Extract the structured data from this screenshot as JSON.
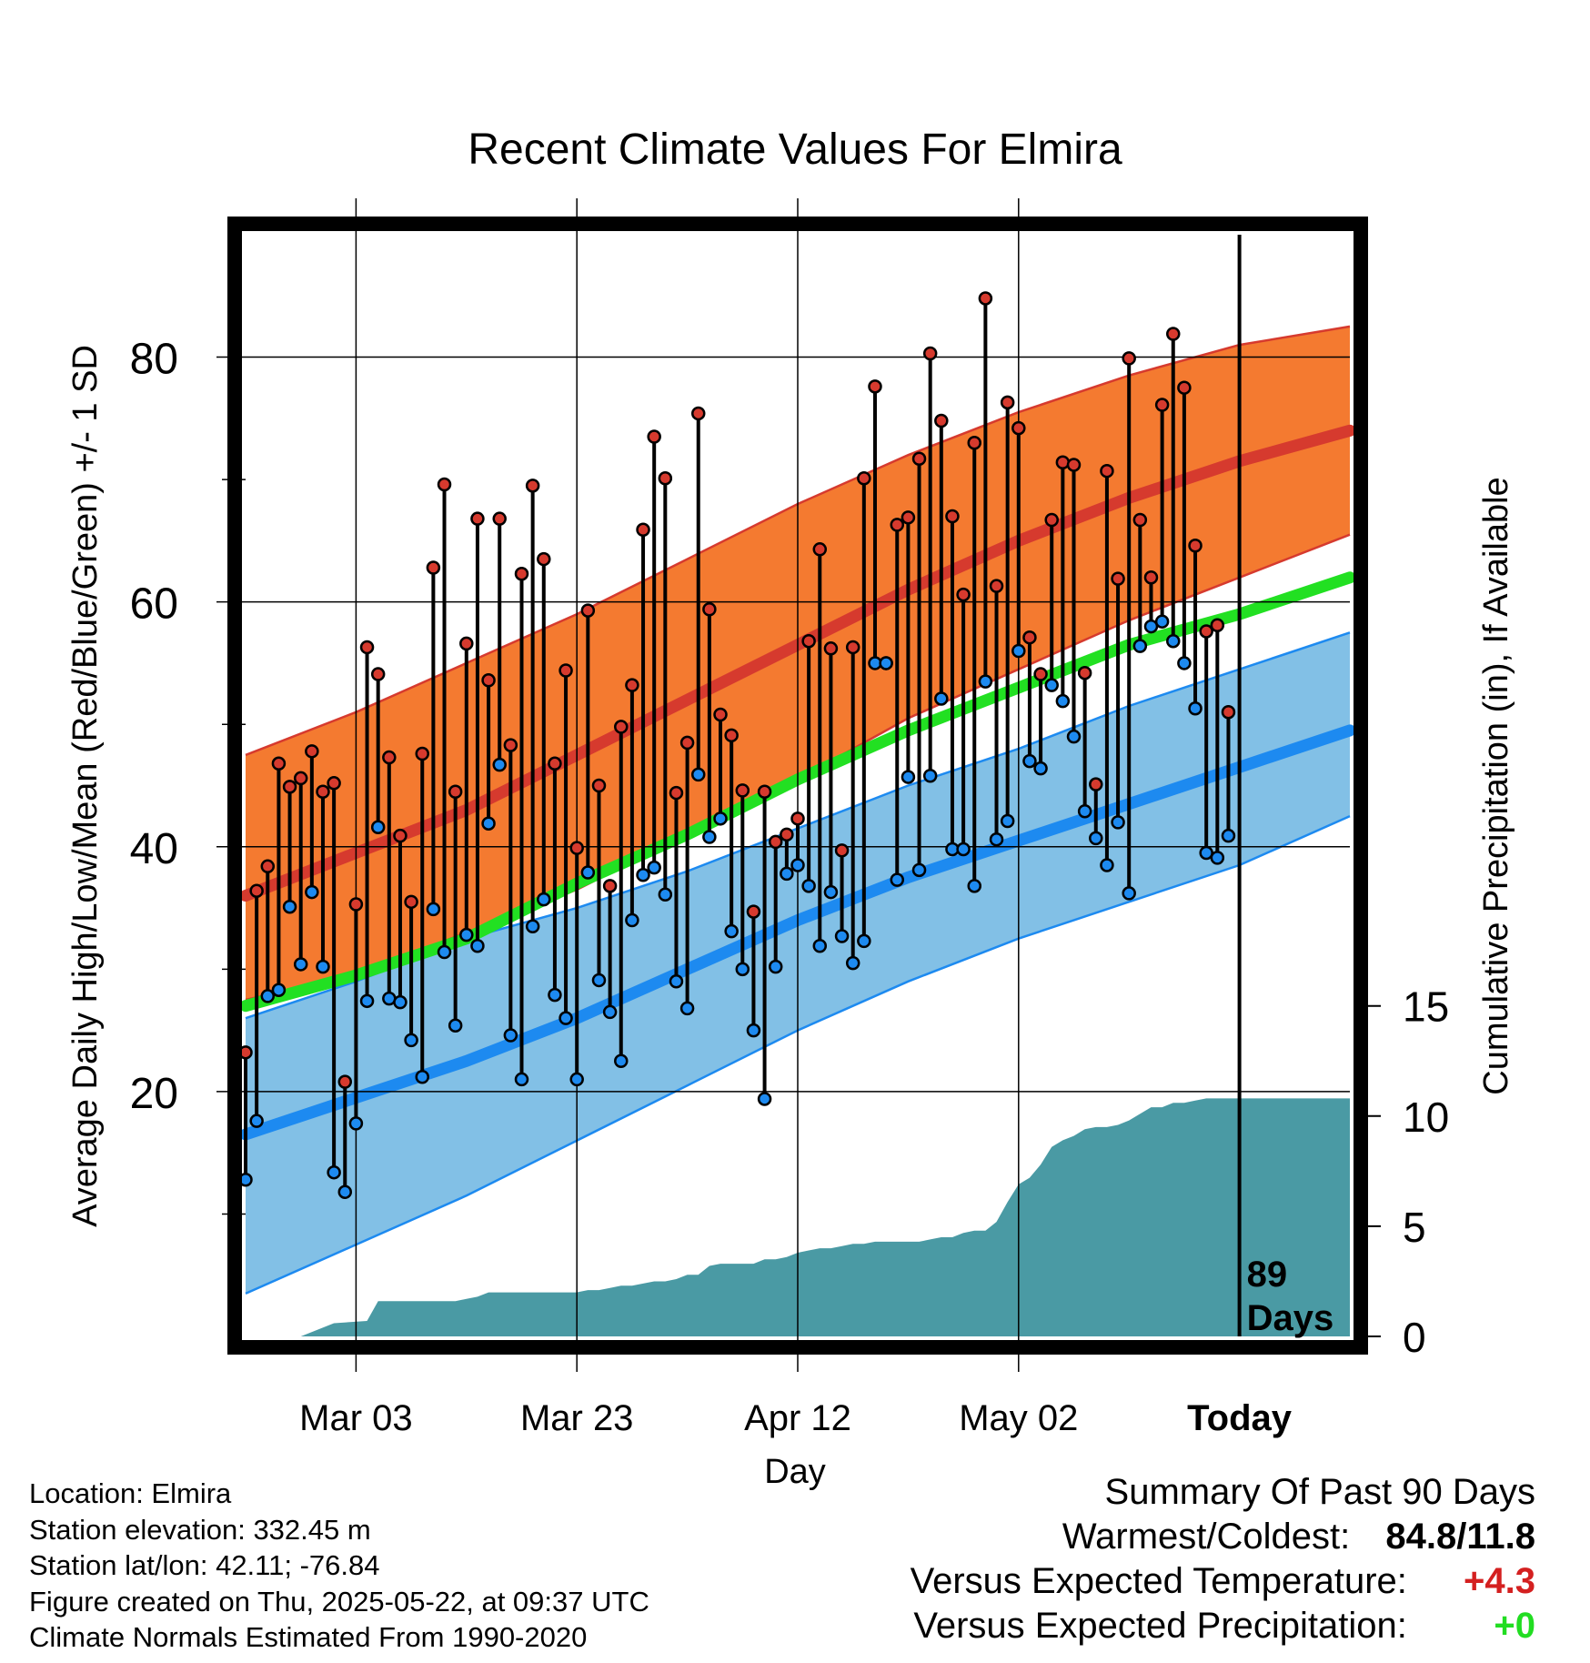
{
  "chart_data": {
    "type": "line",
    "title": "Recent Climate Values For Elmira",
    "xlabel": "Day",
    "ylabel_left": "Average Daily High/Low/Mean (Red/Blue/Green) +/- 1 SD",
    "ylabel_right": "Cumulative Precipitation (in), If Available",
    "x_tick_labels": [
      "Mar 03",
      "Mar 23",
      "Apr 12",
      "May 02",
      "Today"
    ],
    "x_tick_days": [
      10,
      30,
      50,
      70,
      90
    ],
    "xlim": [
      0,
      100
    ],
    "ylim_left": [
      0,
      90
    ],
    "ylim_right": [
      0,
      50
    ],
    "y_ticks_left": [
      20,
      40,
      60,
      80
    ],
    "y_ticks_right": [
      0,
      5,
      10,
      15
    ],
    "grid": true,
    "today_day": 90,
    "today_label": "89\nDays",
    "colors": {
      "high_band": "#f47a30",
      "high_mean": "#d63a2e",
      "low_band": "#82c0e6",
      "low_mean": "#1d8af0",
      "mean_line": "#22e022",
      "precip": "#4a9aa4",
      "high_marker": "#d63a2e",
      "low_marker": "#1d8af0"
    },
    "normal_days": [
      0,
      10,
      20,
      30,
      40,
      50,
      60,
      70,
      80,
      90,
      100
    ],
    "normal_high_mean": [
      36,
      39.5,
      43,
      47.5,
      52,
      56.5,
      61,
      65,
      68.5,
      71.5,
      74
    ],
    "normal_high_sd_upper": [
      47.5,
      51,
      55,
      59,
      63.5,
      68,
      72,
      75.5,
      78.5,
      81,
      82.5
    ],
    "normal_high_sd_lower": [
      27.5,
      29.5,
      33,
      36.5,
      41,
      45.5,
      50.5,
      54.5,
      58.5,
      62,
      65.5
    ],
    "normal_low_mean": [
      16.5,
      19.5,
      22.5,
      26,
      30,
      34,
      37.5,
      40.5,
      43.5,
      46.5,
      49.5
    ],
    "normal_low_sd_upper": [
      26,
      29,
      32.5,
      35,
      38,
      41.5,
      45,
      48,
      51.5,
      54.5,
      57.5
    ],
    "normal_low_sd_lower": [
      3.5,
      7.5,
      11.5,
      16,
      20.5,
      25,
      29,
      32.5,
      35.5,
      38.5,
      42.5
    ],
    "normal_mean": [
      27,
      29.5,
      32.5,
      37,
      41,
      45.5,
      49.5,
      53,
      56.5,
      59,
      62
    ],
    "series": [
      {
        "name": "High",
        "x": [
          0,
          1,
          2,
          3,
          4,
          5,
          6,
          7,
          8,
          9,
          10,
          11,
          12,
          13,
          14,
          15,
          16,
          17,
          18,
          19,
          20,
          21,
          22,
          23,
          24,
          25,
          26,
          27,
          28,
          29,
          30,
          31,
          32,
          33,
          34,
          35,
          36,
          37,
          38,
          39,
          40,
          41,
          42,
          43,
          44,
          45,
          46,
          47,
          48,
          49,
          50,
          51,
          52,
          53,
          54,
          55,
          56,
          57,
          58,
          59,
          60,
          61,
          62,
          63,
          64,
          65,
          66,
          67,
          68,
          69,
          70,
          71,
          72,
          73,
          74,
          75,
          76,
          77,
          78,
          79,
          80,
          81,
          82,
          83,
          84,
          85,
          86,
          87,
          88,
          89
        ],
        "values": [
          23.2,
          36.4,
          38.4,
          46.8,
          44.9,
          45.6,
          47.8,
          44.5,
          45.2,
          20.8,
          35.3,
          56.3,
          54.1,
          47.3,
          40.9,
          35.5,
          47.6,
          62.8,
          69.6,
          44.5,
          56.6,
          66.8,
          53.6,
          66.8,
          48.3,
          62.3,
          69.5,
          63.5,
          46.8,
          54.4,
          39.9,
          59.3,
          45.0,
          36.8,
          49.8,
          53.2,
          65.9,
          73.5,
          70.1,
          44.4,
          48.5,
          75.4,
          59.4,
          50.8,
          49.1,
          44.6,
          34.7,
          44.5,
          40.4,
          41.0,
          42.3,
          56.8,
          64.3,
          56.2,
          39.7,
          56.3,
          70.1,
          77.6,
          55.0,
          66.3,
          66.9,
          71.7,
          80.3,
          74.8,
          67.0,
          60.6,
          73.0,
          84.8,
          61.3,
          76.3,
          74.2,
          57.1,
          54.1,
          66.7,
          71.4,
          71.2,
          54.2,
          45.1,
          70.7,
          61.9,
          79.9,
          66.7,
          62.0,
          76.1,
          81.9,
          77.5,
          64.6,
          57.6,
          58.1,
          51.0
        ]
      },
      {
        "name": "Low",
        "x": [
          0,
          1,
          2,
          3,
          4,
          5,
          6,
          7,
          8,
          9,
          10,
          11,
          12,
          13,
          14,
          15,
          16,
          17,
          18,
          19,
          20,
          21,
          22,
          23,
          24,
          25,
          26,
          27,
          28,
          29,
          30,
          31,
          32,
          33,
          34,
          35,
          36,
          37,
          38,
          39,
          40,
          41,
          42,
          43,
          44,
          45,
          46,
          47,
          48,
          49,
          50,
          51,
          52,
          53,
          54,
          55,
          56,
          57,
          58,
          59,
          60,
          61,
          62,
          63,
          64,
          65,
          66,
          67,
          68,
          69,
          70,
          71,
          72,
          73,
          74,
          75,
          76,
          77,
          78,
          79,
          80,
          81,
          82,
          83,
          84,
          85,
          86,
          87,
          88,
          89
        ],
        "values": [
          12.8,
          17.6,
          27.8,
          28.3,
          35.1,
          30.4,
          36.3,
          30.2,
          13.4,
          11.8,
          17.4,
          27.4,
          41.6,
          27.6,
          27.3,
          24.2,
          21.2,
          34.9,
          31.4,
          25.4,
          32.8,
          31.9,
          41.9,
          46.7,
          24.6,
          21.0,
          33.5,
          35.7,
          27.9,
          26.0,
          21.0,
          37.9,
          29.1,
          26.5,
          22.5,
          34.0,
          37.7,
          38.3,
          36.1,
          29.0,
          26.8,
          45.9,
          40.8,
          42.3,
          33.1,
          30.0,
          25.0,
          19.4,
          30.2,
          37.8,
          38.5,
          36.8,
          31.9,
          36.3,
          32.7,
          30.5,
          32.3,
          55.0,
          55.0,
          37.3,
          45.7,
          38.1,
          45.8,
          52.1,
          39.8,
          39.8,
          36.8,
          53.5,
          40.6,
          42.1,
          56.0,
          47.0,
          46.4,
          53.2,
          51.9,
          49.0,
          42.9,
          40.7,
          38.5,
          42.0,
          36.2,
          56.4,
          58.0,
          58.4,
          56.8,
          55.0,
          51.3,
          39.5,
          39.1,
          40.9
        ]
      },
      {
        "name": "Cumulative Precipitation",
        "axis": "right",
        "x": [
          0,
          3,
          5,
          8,
          11,
          12,
          19,
          20,
          21,
          22,
          23,
          30,
          31,
          32,
          33,
          34,
          35,
          36,
          37,
          38,
          39,
          40,
          41,
          42,
          43,
          44,
          45,
          46,
          47,
          48,
          49,
          50,
          51,
          52,
          53,
          54,
          55,
          56,
          57,
          58,
          59,
          60,
          61,
          62,
          63,
          64,
          65,
          66,
          67,
          68,
          69,
          70,
          71,
          72,
          73,
          74,
          75,
          76,
          77,
          78,
          79,
          80,
          81,
          82,
          83,
          84,
          85,
          86,
          87,
          88,
          89,
          100
        ],
        "values": [
          0,
          0,
          0,
          0.6,
          0.7,
          1.6,
          1.6,
          1.7,
          1.8,
          2.0,
          2.0,
          2.0,
          2.1,
          2.1,
          2.2,
          2.3,
          2.3,
          2.4,
          2.5,
          2.5,
          2.6,
          2.8,
          2.8,
          3.2,
          3.3,
          3.3,
          3.3,
          3.3,
          3.5,
          3.5,
          3.6,
          3.8,
          3.9,
          4.0,
          4.0,
          4.1,
          4.2,
          4.2,
          4.3,
          4.3,
          4.3,
          4.3,
          4.3,
          4.4,
          4.5,
          4.5,
          4.7,
          4.8,
          4.8,
          5.2,
          6.1,
          6.9,
          7.2,
          7.8,
          8.6,
          8.9,
          9.1,
          9.4,
          9.5,
          9.5,
          9.6,
          9.8,
          10.1,
          10.4,
          10.4,
          10.6,
          10.6,
          10.7,
          10.8,
          10.8,
          10.8,
          10.8
        ]
      }
    ]
  },
  "info": {
    "location": "Location: Elmira",
    "elevation": "Station elevation: 332.45 m",
    "latlon": "Station lat/lon: 42.11; -76.84",
    "created": "Figure created on Thu, 2025-05-22, at 09:37 UTC",
    "normals": "Climate Normals Estimated From 1990-2020"
  },
  "summary": {
    "title": "Summary Of Past 90 Days",
    "warmest_coldest_label": "Warmest/Coldest:",
    "warmest": "84.8",
    "coldest": "11.8",
    "temp_label": "Versus Expected Temperature:",
    "temp_value": "+4.3",
    "temp_color": "#d42020",
    "precip_label": "Versus Expected Precipitation:",
    "precip_value": "+0",
    "precip_color": "#22dd22"
  }
}
